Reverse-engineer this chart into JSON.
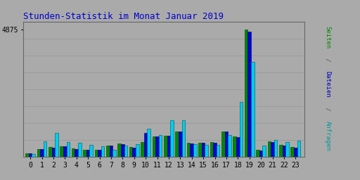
{
  "title": "Stunden-Statistik im Monat Januar 2019",
  "title_color": "#0000CC",
  "title_fontsize": 9,
  "hours": [
    0,
    1,
    2,
    3,
    4,
    5,
    6,
    7,
    8,
    9,
    10,
    11,
    12,
    13,
    14,
    15,
    16,
    17,
    18,
    19,
    20,
    21,
    22,
    23
  ],
  "seiten": [
    130,
    290,
    370,
    390,
    310,
    270,
    270,
    430,
    500,
    360,
    570,
    780,
    810,
    970,
    530,
    540,
    550,
    960,
    760,
    4875,
    250,
    580,
    450,
    360
  ],
  "dateien": [
    120,
    280,
    355,
    400,
    295,
    255,
    260,
    420,
    490,
    350,
    920,
    770,
    800,
    960,
    515,
    525,
    530,
    950,
    740,
    4780,
    240,
    565,
    435,
    345
  ],
  "anfragen": [
    110,
    590,
    900,
    560,
    540,
    440,
    390,
    260,
    430,
    490,
    1060,
    830,
    1400,
    1380,
    490,
    440,
    455,
    840,
    2100,
    3620,
    430,
    650,
    560,
    600
  ],
  "color_seiten": "#008800",
  "color_dateien": "#0000DD",
  "color_anfragen": "#00CCEE",
  "bg_color": "#AAAAAA",
  "grid_color": "#999999",
  "ytick": 4875,
  "bar_width": 0.28,
  "figsize": [
    5.12,
    2.56
  ],
  "dpi": 100,
  "ylabel_seiten": "Seiten",
  "ylabel_dateien": "Dateien",
  "ylabel_anfragen": "Anfragen",
  "ylabel_sep": " / ",
  "ylabel_color_seiten": "#008800",
  "ylabel_color_dateien": "#0000BB",
  "ylabel_color_anfragen": "#009999",
  "ylabel_sep_color": "#555555"
}
